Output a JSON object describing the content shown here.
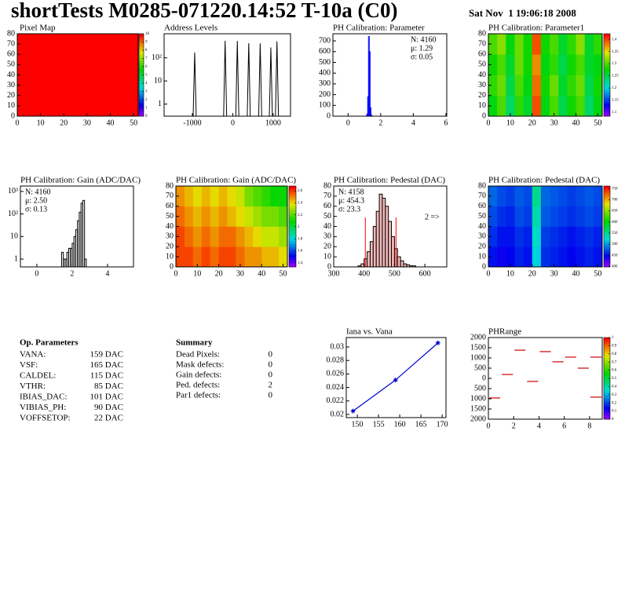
{
  "header": {
    "title": "shortTests M0285-071220.14:52 T-10a (C0)",
    "date": "Sat Nov  1 19:06:18 2008"
  },
  "chart_data": [
    {
      "type": "heatmap",
      "title": "Pixel Map",
      "xlim": [
        0,
        52
      ],
      "xticks": [
        0,
        10,
        20,
        30,
        40,
        50
      ],
      "ylim": [
        0,
        80
      ],
      "yticks": [
        0,
        10,
        20,
        30,
        40,
        50,
        60,
        70,
        80
      ],
      "zlim": [
        0,
        10
      ],
      "zticks": [
        0,
        1,
        2,
        3,
        4,
        5,
        6,
        7,
        8,
        9,
        10
      ],
      "values": [
        [
          10
        ]
      ]
    },
    {
      "type": "peaks",
      "title": "Address Levels",
      "xlim": [
        -1700,
        1430
      ],
      "xticks": [
        -1000,
        0,
        1000
      ],
      "log_y": true,
      "ylim": [
        0.3,
        1100
      ],
      "yticks": [
        1,
        10,
        {
          "value": 100,
          "label": "10²"
        }
      ],
      "color": "#000000",
      "x": [
        -943,
        -189,
        113,
        396,
        679,
        943,
        1094
      ],
      "values": [
        170,
        550,
        540,
        430,
        420,
        280,
        520
      ]
    },
    {
      "type": "histogram",
      "title": "PH Calibration: Parameter",
      "xlim": [
        -0.93,
        6.05
      ],
      "xticks": [
        0,
        2,
        4,
        6
      ],
      "ylim": [
        0,
        766
      ],
      "yticks": [
        0,
        100,
        200,
        300,
        400,
        500,
        600,
        700
      ],
      "color": "#0000ff",
      "bins": [
        1.1,
        1.15,
        1.2,
        1.25,
        1.3,
        1.35,
        1.4,
        1.45,
        1.5
      ],
      "values": [
        2,
        20,
        180,
        740,
        600,
        80,
        10,
        2
      ],
      "stats": [
        {
          "text": "N: 4160",
          "color": "#0000ff"
        },
        {
          "text": "μ: 1.29",
          "color": "#0000ff"
        },
        {
          "text": "σ: 0.05",
          "color": "#0000ff"
        }
      ]
    },
    {
      "type": "heatmap",
      "title": "PH Calibration: Parameter1",
      "xlim": [
        0,
        52
      ],
      "xticks": [
        0,
        10,
        20,
        30,
        40,
        50
      ],
      "ylim": [
        0,
        80
      ],
      "yticks": [
        0,
        10,
        20,
        30,
        40,
        50,
        60,
        70,
        80
      ],
      "zlim": [
        1.084,
        1.423
      ],
      "zticks": [
        1.1,
        1.15,
        1.2,
        1.25,
        1.3,
        1.35,
        1.4
      ],
      "values": [
        [
          1.27,
          1.3,
          1.24,
          1.29,
          1.26,
          1.4,
          1.27,
          1.3,
          1.25,
          1.28,
          1.3,
          1.24,
          1.27
        ],
        [
          1.29,
          1.31,
          1.25,
          1.3,
          1.27,
          1.39,
          1.28,
          1.31,
          1.26,
          1.29,
          1.31,
          1.25,
          1.28
        ],
        [
          1.28,
          1.3,
          1.26,
          1.31,
          1.28,
          1.38,
          1.27,
          1.29,
          1.25,
          1.28,
          1.3,
          1.26,
          1.27
        ],
        [
          1.3,
          1.32,
          1.27,
          1.31,
          1.28,
          1.4,
          1.28,
          1.3,
          1.26,
          1.29,
          1.32,
          1.26,
          1.29
        ]
      ]
    },
    {
      "type": "histogram",
      "title": "PH Calibration: Gain (ADC/DAC)",
      "xlim": [
        -0.93,
        5.47
      ],
      "xticks": [
        0,
        2,
        4
      ],
      "log_y": true,
      "ylim": [
        0.45,
        1740
      ],
      "yticks": [
        1,
        10,
        {
          "value": 100,
          "label": "10²"
        },
        {
          "value": 1000,
          "label": "10³"
        }
      ],
      "color": "#000000",
      "bins": [
        1.4,
        1.5,
        1.6,
        1.7,
        1.8,
        1.9,
        2.0,
        2.1,
        2.2,
        2.3,
        2.4,
        2.5,
        2.6,
        2.7,
        2.8
      ],
      "values": [
        2,
        1,
        1,
        2,
        3,
        3,
        5,
        10,
        20,
        50,
        120,
        300,
        400,
        1
      ],
      "stats": [
        {
          "text": "N: 4160",
          "color": "#000000"
        },
        {
          "text": "μ: 2.50",
          "color": "#000000"
        },
        {
          "text": "σ: 0.13",
          "color": "#000000"
        }
      ]
    },
    {
      "type": "heatmap",
      "title": "PH Calibration: Gain (ADC/DAC)",
      "xlim": [
        0,
        52
      ],
      "xticks": [
        0,
        10,
        20,
        30,
        40,
        50
      ],
      "ylim": [
        0,
        80
      ],
      "yticks": [
        0,
        10,
        20,
        30,
        40,
        50,
        60,
        70,
        80
      ],
      "zlim": [
        1.33,
        2.68
      ],
      "zticks": [
        1.4,
        1.6,
        1.8,
        2,
        2.2,
        2.4,
        2.6
      ],
      "values": [
        [
          2.6,
          2.6,
          2.55,
          2.6,
          2.55,
          2.6,
          2.6,
          2.55,
          2.5,
          2.5,
          2.45,
          2.45,
          2.4
        ],
        [
          2.6,
          2.55,
          2.5,
          2.55,
          2.5,
          2.55,
          2.55,
          2.5,
          2.45,
          2.4,
          2.35,
          2.35,
          2.3
        ],
        [
          2.55,
          2.5,
          2.45,
          2.5,
          2.45,
          2.5,
          2.45,
          2.4,
          2.35,
          2.3,
          2.25,
          2.25,
          2.2
        ],
        [
          2.5,
          2.45,
          2.4,
          2.45,
          2.4,
          2.45,
          2.4,
          2.35,
          2.25,
          2.2,
          2.15,
          2.1,
          2.1
        ]
      ]
    },
    {
      "type": "histogram",
      "title": "PH Calibration: Pedestal (DAC)",
      "xlim": [
        300,
        672
      ],
      "xticks": [
        300,
        400,
        500,
        600
      ],
      "ylim": [
        0,
        80
      ],
      "yticks": [
        0,
        10,
        20,
        30,
        40,
        50,
        60,
        70,
        80
      ],
      "color": "#000000",
      "fill": "#f2b8b8",
      "bins": [
        380,
        390,
        400,
        410,
        420,
        430,
        440,
        450,
        460,
        470,
        480,
        490,
        500,
        510,
        520,
        530,
        540,
        550,
        560,
        570
      ],
      "values": [
        1,
        3,
        8,
        15,
        25,
        40,
        55,
        72,
        68,
        60,
        45,
        30,
        18,
        10,
        6,
        3,
        2,
        1,
        1
      ],
      "stats": [
        {
          "text": "N: 4158",
          "color": "#000000"
        },
        {
          "text": "μ: 454.3",
          "color": "#ff0000"
        },
        {
          "text": "σ: 23.3",
          "color": "#ff0000"
        }
      ],
      "cut_lines": [
        404,
        505
      ],
      "cut_color": "#ff0000",
      "annotation": {
        "text": "2 =>",
        "color": "#ff0000"
      }
    },
    {
      "type": "heatmap",
      "title": "PH Calibration: Pedestal (DAC)",
      "xlim": [
        0,
        52
      ],
      "xticks": [
        0,
        10,
        20,
        30,
        40,
        50
      ],
      "ylim": [
        0,
        80
      ],
      "yticks": [
        0,
        10,
        20,
        30,
        40,
        50,
        60,
        70,
        80
      ],
      "zlim": [
        398,
        761
      ],
      "zticks": [
        400,
        450,
        500,
        550,
        600,
        650,
        700,
        750
      ],
      "values": [
        [
          450,
          440,
          445,
          455,
          450,
          520,
          460,
          455,
          450,
          445,
          450,
          455,
          450
        ],
        [
          460,
          450,
          450,
          460,
          455,
          530,
          465,
          460,
          455,
          450,
          455,
          460,
          455
        ],
        [
          470,
          460,
          455,
          470,
          465,
          540,
          475,
          470,
          465,
          460,
          465,
          470,
          465
        ],
        [
          480,
          470,
          465,
          475,
          470,
          550,
          480,
          475,
          470,
          465,
          470,
          475,
          470
        ]
      ]
    },
    {
      "type": "line",
      "title": "Iana vs. Vana",
      "xlim": [
        147.4,
        170.9
      ],
      "xticks": [
        150,
        155,
        160,
        165,
        170
      ],
      "ylim": [
        0.01953,
        0.0314
      ],
      "yticks": [
        0.02,
        0.022,
        0.024,
        0.026,
        0.028,
        0.03
      ],
      "color": "#0000cc",
      "x": [
        149,
        159,
        169
      ],
      "values": [
        0.0205,
        0.0251,
        0.0306
      ]
    },
    {
      "type": "segments",
      "title": "PHRange",
      "xlim": [
        0,
        9
      ],
      "xticks": [
        0,
        2,
        4,
        6,
        8
      ],
      "ylim": [
        -2000,
        2000
      ],
      "yticks": [
        {
          "value": -2000,
          "label": "2000"
        },
        {
          "value": -1500,
          "label": "1500"
        },
        {
          "value": -1000,
          "label": "1000"
        },
        {
          "value": -500,
          "label": "500"
        },
        0,
        500,
        1000,
        1500,
        2000
      ],
      "zlim": [
        0,
        1
      ],
      "zticks": [
        0,
        0.1,
        0.2,
        0.3,
        0.4,
        0.5,
        0.6,
        0.7,
        0.8,
        0.9,
        1
      ],
      "color": "#cc0000",
      "x": [
        0,
        1,
        2,
        3,
        4,
        5,
        6,
        7,
        8,
        8
      ],
      "values": [
        -960,
        190,
        1380,
        -150,
        1310,
        810,
        1040,
        500,
        1040,
        -920
      ]
    }
  ],
  "op_parameters": {
    "title": "Op. Parameters",
    "rows": [
      [
        "VANA:",
        "159 DAC"
      ],
      [
        "VSF:",
        "165 DAC"
      ],
      [
        "CALDEL:",
        "115 DAC"
      ],
      [
        "VTHR:",
        "85 DAC"
      ],
      [
        "IBIAS_DAC:",
        "101 DAC"
      ],
      [
        "VIBIAS_PH:",
        "90 DAC"
      ],
      [
        "VOFFSETOP:",
        "22 DAC"
      ]
    ]
  },
  "summary": {
    "title": "Summary",
    "rows": [
      {
        "label": "Dead Pixels:",
        "value": "0",
        "color": "#000000"
      },
      {
        "label": "Mask defects:",
        "value": "0",
        "color": "#000000"
      },
      {
        "label": "Gain defects:",
        "value": "0",
        "color": "#000000"
      },
      {
        "label": "Ped. defects:",
        "value": "2",
        "color": "#ff0000"
      },
      {
        "label": "Par1 defects:",
        "value": "0",
        "color": "#0000ff"
      }
    ]
  }
}
